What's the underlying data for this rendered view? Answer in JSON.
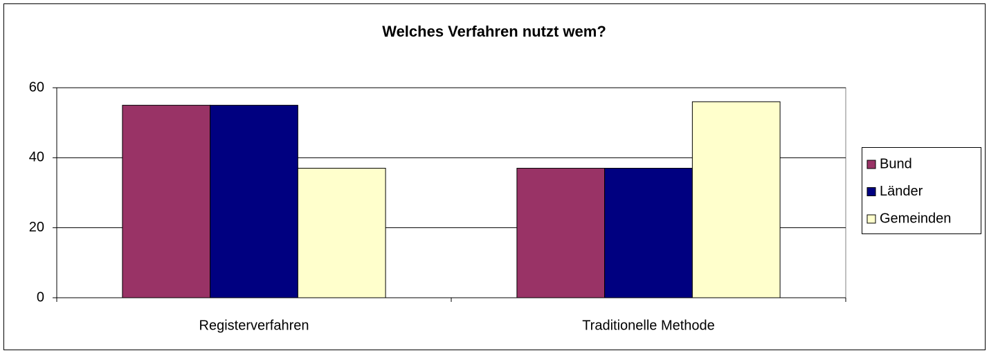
{
  "chart_data": {
    "type": "bar",
    "title": "Welches Verfahren nutzt wem?",
    "categories": [
      "Registerverfahren",
      "Traditionelle Methode"
    ],
    "series": [
      {
        "name": "Bund",
        "color": "#993366",
        "values": [
          55,
          37
        ]
      },
      {
        "name": "Länder",
        "color": "#000080",
        "values": [
          55,
          37
        ]
      },
      {
        "name": "Gemeinden",
        "color": "#FFFFCC",
        "values": [
          37,
          56
        ]
      }
    ],
    "ylim": [
      0,
      60
    ],
    "yticks": [
      0,
      20,
      40,
      60
    ],
    "grid": true,
    "legend": "right"
  }
}
